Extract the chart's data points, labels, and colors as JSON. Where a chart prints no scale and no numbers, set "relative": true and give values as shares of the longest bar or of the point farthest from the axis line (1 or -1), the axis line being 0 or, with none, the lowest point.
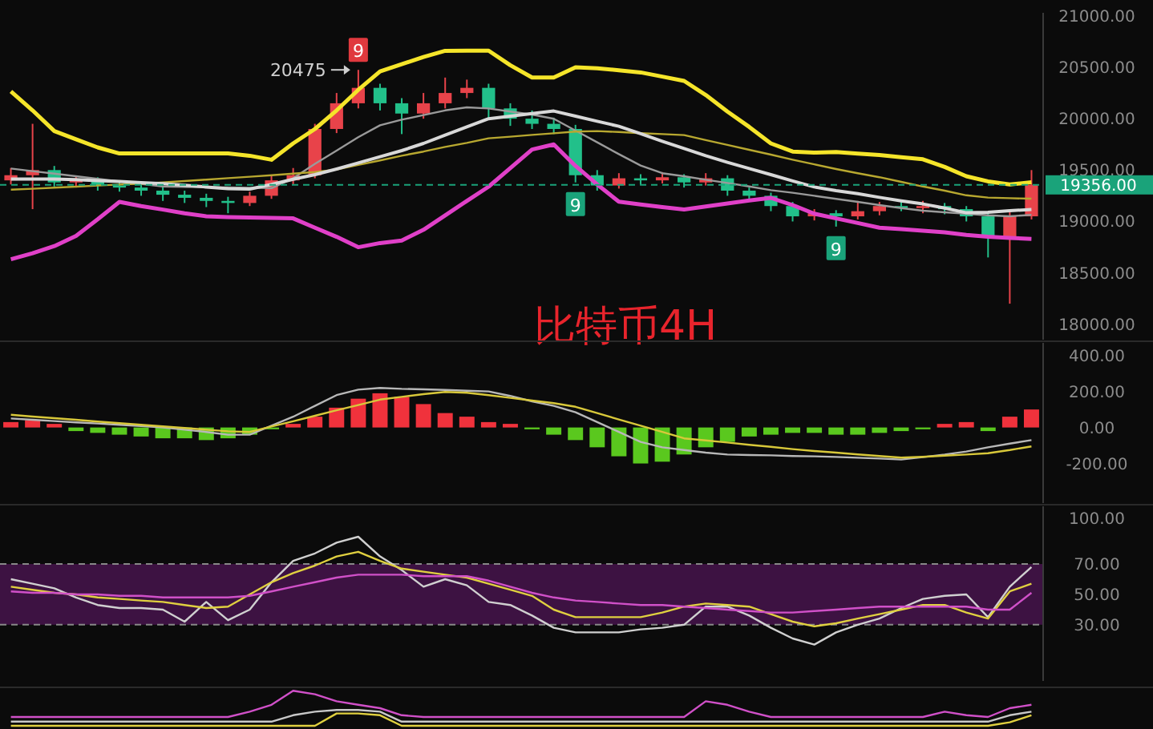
{
  "chart_data": [
    {
      "type": "candlestick",
      "title": "比特币4H",
      "tick_labels": "y",
      "ylim": [
        17850,
        21030
      ],
      "yticks": [
        {
          "value": 18000,
          "label": "18000.00"
        },
        {
          "value": 18500,
          "label": "18500.00"
        },
        {
          "value": 19000,
          "label": "19000.00"
        },
        {
          "value": 19500,
          "label": "19500.00"
        },
        {
          "value": 20000,
          "label": "20000.00"
        },
        {
          "value": 20500,
          "label": "20500.00"
        },
        {
          "value": 21000,
          "label": "21000.00"
        }
      ],
      "categories": [
        null,
        null,
        null,
        null,
        null,
        null,
        null,
        null,
        null,
        null,
        null,
        null,
        null,
        null,
        null,
        null,
        null,
        null,
        null,
        null,
        null,
        null,
        null,
        null,
        null,
        null,
        null,
        null,
        null,
        null,
        null,
        null,
        null,
        null,
        null,
        null,
        null,
        null,
        null,
        null,
        null,
        null,
        null,
        null,
        null,
        null,
        null,
        null
      ],
      "ohlc": [
        [
          19400,
          19520,
          19360,
          19450
        ],
        [
          19450,
          19950,
          19120,
          19500
        ],
        [
          19500,
          19540,
          19340,
          19380
        ],
        [
          19380,
          19440,
          19330,
          19400
        ],
        [
          19400,
          19430,
          19300,
          19350
        ],
        [
          19350,
          19390,
          19290,
          19330
        ],
        [
          19330,
          19360,
          19250,
          19300
        ],
        [
          19300,
          19340,
          19200,
          19260
        ],
        [
          19260,
          19300,
          19180,
          19230
        ],
        [
          19230,
          19270,
          19140,
          19200
        ],
        [
          19200,
          19240,
          19080,
          19180
        ],
        [
          19180,
          19290,
          19150,
          19250
        ],
        [
          19250,
          19450,
          19220,
          19400
        ],
        [
          19400,
          19520,
          19360,
          19450
        ],
        [
          19450,
          19950,
          19420,
          19900
        ],
        [
          19900,
          20250,
          19860,
          20150
        ],
        [
          20150,
          20475,
          20100,
          20300
        ],
        [
          20300,
          20340,
          20080,
          20150
        ],
        [
          20150,
          20200,
          19850,
          20050
        ],
        [
          20050,
          20250,
          20000,
          20150
        ],
        [
          20150,
          20400,
          20100,
          20250
        ],
        [
          20250,
          20380,
          20200,
          20300
        ],
        [
          20300,
          20340,
          20000,
          20100
        ],
        [
          20100,
          20150,
          19930,
          20000
        ],
        [
          20000,
          20080,
          19900,
          19950
        ],
        [
          19950,
          20010,
          19850,
          19900
        ],
        [
          19900,
          19940,
          19380,
          19450
        ],
        [
          19450,
          19500,
          19300,
          19350
        ],
        [
          19350,
          19470,
          19320,
          19420
        ],
        [
          19420,
          19460,
          19360,
          19400
        ],
        [
          19400,
          19480,
          19370,
          19430
        ],
        [
          19430,
          19460,
          19330,
          19380
        ],
        [
          19380,
          19470,
          19350,
          19420
        ],
        [
          19420,
          19450,
          19250,
          19300
        ],
        [
          19300,
          19330,
          19200,
          19250
        ],
        [
          19250,
          19280,
          19100,
          19150
        ],
        [
          19150,
          19190,
          19000,
          19050
        ],
        [
          19050,
          19120,
          19010,
          19080
        ],
        [
          19080,
          19110,
          18950,
          19050
        ],
        [
          19050,
          19200,
          19020,
          19100
        ],
        [
          19100,
          19190,
          19060,
          19150
        ],
        [
          19150,
          19200,
          19100,
          19130
        ],
        [
          19130,
          19200,
          19080,
          19150
        ],
        [
          19150,
          19180,
          19070,
          19120
        ],
        [
          19120,
          19150,
          19000,
          19050
        ],
        [
          19050,
          19080,
          18650,
          18850
        ],
        [
          18850,
          19100,
          18200,
          19050
        ],
        [
          19050,
          19500,
          19020,
          19356
        ]
      ],
      "series": [
        {
          "type": "line",
          "color": "#f5e52a",
          "values": [
            20265,
            20080,
            19880,
            19800,
            19720,
            19662,
            19662,
            19662,
            19662,
            19662,
            19662,
            19640,
            19600,
            19760,
            19900,
            20080,
            20280,
            20460,
            20530,
            20600,
            20660,
            20662,
            20662,
            20520,
            20400,
            20400,
            20500,
            20490,
            20470,
            20450,
            20410,
            20368,
            20230,
            20070,
            19920,
            19760,
            19680,
            19670,
            19675,
            19660,
            19645,
            19625,
            19605,
            19530,
            19440,
            19390,
            19360,
            19380
          ]
        },
        {
          "type": "line",
          "color": "#e040c8",
          "values": [
            18633,
            18690,
            18760,
            18860,
            19020,
            19190,
            19150,
            19115,
            19080,
            19050,
            19043,
            19040,
            19035,
            19030,
            18940,
            18850,
            18750,
            18790,
            18815,
            18920,
            19060,
            19200,
            19339,
            19520,
            19700,
            19750,
            19540,
            19360,
            19192,
            19165,
            19140,
            19118,
            19145,
            19175,
            19205,
            19230,
            19160,
            19075,
            19030,
            18985,
            18940,
            18925,
            18910,
            18895,
            18870,
            18850,
            18840,
            18830
          ]
        },
        {
          "type": "line",
          "color": "#9a9a9a",
          "values": [
            19515,
            19490,
            19465,
            19440,
            19415,
            19390,
            19365,
            19340,
            19337,
            19334,
            19331,
            19328,
            19325,
            19420,
            19560,
            19690,
            19820,
            19935,
            19990,
            20035,
            20080,
            20110,
            20100,
            20070,
            20040,
            20000,
            19885,
            19770,
            19655,
            19545,
            19470,
            19440,
            19405,
            19375,
            19340,
            19305,
            19280,
            19250,
            19220,
            19190,
            19160,
            19130,
            19105,
            19090,
            19075,
            19060,
            19050,
            19065
          ]
        },
        {
          "type": "line",
          "color": "#b8a830",
          "values": [
            19309,
            19319,
            19329,
            19339,
            19349,
            19359,
            19369,
            19380,
            19393,
            19408,
            19422,
            19436,
            19450,
            19465,
            19480,
            19505,
            19550,
            19595,
            19640,
            19680,
            19725,
            19765,
            19809,
            19825,
            19842,
            19858,
            19875,
            19880,
            19870,
            19860,
            19850,
            19840,
            19792,
            19745,
            19697,
            19650,
            19600,
            19555,
            19510,
            19470,
            19430,
            19385,
            19340,
            19300,
            19255,
            19232,
            19227,
            19222
          ]
        },
        {
          "type": "line",
          "color": "#d8d8d8",
          "values": [
            19412,
            19412,
            19412,
            19408,
            19398,
            19388,
            19378,
            19368,
            19352,
            19336,
            19320,
            19315,
            19360,
            19410,
            19455,
            19510,
            19570,
            19630,
            19690,
            19760,
            19840,
            19920,
            20000,
            20025,
            20050,
            20074,
            20025,
            19975,
            19927,
            19855,
            19780,
            19710,
            19640,
            19575,
            19515,
            19455,
            19395,
            19335,
            19300,
            19270,
            19235,
            19200,
            19170,
            19130,
            19085,
            19090,
            19105,
            19115
          ]
        }
      ],
      "ref_lines": [
        {
          "axis": "y",
          "value": 19356,
          "label": "19356.00",
          "color": "#1aa37a",
          "line_style": "dashed"
        }
      ],
      "annotations": [
        "20475",
        {
          "text": "9",
          "y": 20475
        },
        {
          "text": "9",
          "y": 19380
        },
        {
          "text": "9",
          "y": 18950
        }
      ]
    },
    {
      "type": "bar",
      "tick_labels": "y",
      "ylim": [
        -420,
        470
      ],
      "yticks": [
        {
          "value": -200,
          "label": "-200.00"
        },
        {
          "value": 0,
          "label": "0.00"
        },
        {
          "value": 200,
          "label": "200.00"
        },
        {
          "value": 400,
          "label": "400.00"
        }
      ],
      "categories": [
        null,
        null,
        null,
        null,
        null,
        null,
        null,
        null,
        null,
        null,
        null,
        null,
        null,
        null,
        null,
        null,
        null,
        null,
        null,
        null,
        null,
        null,
        null,
        null,
        null,
        null,
        null,
        null,
        null,
        null,
        null,
        null,
        null,
        null,
        null,
        null,
        null,
        null,
        null,
        null,
        null,
        null,
        null,
        null,
        null,
        null,
        null,
        null
      ],
      "values": [
        30,
        40,
        20,
        -20,
        -30,
        -40,
        -50,
        -60,
        -60,
        -70,
        -60,
        -40,
        -10,
        20,
        60,
        110,
        160,
        190,
        170,
        130,
        80,
        60,
        30,
        20,
        -10,
        -40,
        -70,
        -110,
        -160,
        -200,
        -190,
        -150,
        -110,
        -80,
        -50,
        -40,
        -30,
        -30,
        -40,
        -40,
        -30,
        -20,
        -10,
        20,
        30,
        -20,
        60,
        100
      ],
      "colors": [
        "#f0323c",
        "#f0323c",
        "#f0323c",
        "#5ac81e",
        "#5ac81e",
        "#5ac81e",
        "#5ac81e",
        "#5ac81e",
        "#5ac81e",
        "#5ac81e",
        "#5ac81e",
        "#5ac81e",
        "#5ac81e",
        "#f0323c",
        "#f0323c",
        "#f0323c",
        "#f0323c",
        "#f0323c",
        "#f0323c",
        "#f0323c",
        "#f0323c",
        "#f0323c",
        "#f0323c",
        "#f0323c",
        "#5ac81e",
        "#5ac81e",
        "#5ac81e",
        "#5ac81e",
        "#5ac81e",
        "#5ac81e",
        "#5ac81e",
        "#5ac81e",
        "#5ac81e",
        "#5ac81e",
        "#5ac81e",
        "#5ac81e",
        "#5ac81e",
        "#5ac81e",
        "#5ac81e",
        "#5ac81e",
        "#5ac81e",
        "#5ac81e",
        "#5ac81e",
        "#f0323c",
        "#f0323c",
        "#5ac81e",
        "#f0323c",
        "#f0323c"
      ],
      "series": [
        {
          "type": "line",
          "color": "#b8b8b8",
          "values": [
            50,
            43,
            36,
            29,
            22,
            15,
            8,
            0,
            -12,
            -25,
            -40,
            -40,
            10,
            60,
            120,
            180,
            210,
            220,
            215,
            212,
            208,
            204,
            200,
            175,
            145,
            120,
            85,
            30,
            -25,
            -80,
            -110,
            -125,
            -140,
            -150,
            -153,
            -155,
            -158,
            -160,
            -164,
            -168,
            -173,
            -178,
            -165,
            -150,
            -133,
            -110,
            -90,
            -70
          ]
        },
        {
          "type": "line",
          "color": "#d8c83a",
          "values": [
            70,
            61,
            52,
            43,
            33,
            24,
            15,
            6,
            -3,
            -12,
            -21,
            -25,
            5,
            35,
            65,
            95,
            125,
            155,
            170,
            185,
            198,
            193,
            180,
            165,
            150,
            135,
            115,
            80,
            45,
            10,
            -25,
            -60,
            -72,
            -84,
            -96,
            -108,
            -120,
            -131,
            -140,
            -149,
            -158,
            -167,
            -163,
            -157,
            -150,
            -143,
            -125,
            -105
          ]
        }
      ]
    },
    {
      "type": "line",
      "tick_labels": "y",
      "ylim": [
        -7,
        108
      ],
      "yticks": [
        {
          "value": 30,
          "label": "30.00"
        },
        {
          "value": 50,
          "label": "50.00"
        },
        {
          "value": 70,
          "label": "70.00"
        },
        {
          "value": 100,
          "label": "100.00"
        }
      ],
      "categories": [
        null,
        null,
        null,
        null,
        null,
        null,
        null,
        null,
        null,
        null,
        null,
        null,
        null,
        null,
        null,
        null,
        null,
        null,
        null,
        null,
        null,
        null,
        null,
        null,
        null,
        null,
        null,
        null,
        null,
        null,
        null,
        null,
        null,
        null,
        null,
        null,
        null,
        null,
        null,
        null,
        null,
        null,
        null,
        null,
        null,
        null,
        null,
        null
      ],
      "bands": [
        {
          "axis": "y",
          "from": 30,
          "to": 70,
          "color": "#3d1242"
        }
      ],
      "series": [
        {
          "color": "#d0d0d0",
          "values": [
            60,
            57,
            54,
            48,
            43,
            41,
            41,
            40,
            32,
            45,
            33,
            40,
            58,
            72,
            77,
            84,
            88,
            75,
            66,
            55,
            60,
            56,
            45,
            43,
            36,
            28,
            25,
            25,
            25,
            27,
            28,
            30,
            42,
            42,
            36,
            28,
            21,
            17,
            25,
            30,
            34,
            41,
            47,
            49,
            50,
            35,
            55,
            68
          ]
        },
        {
          "color": "#e0d040",
          "values": [
            55,
            53,
            51,
            50,
            48,
            47,
            46,
            45,
            43,
            41,
            42,
            50,
            58,
            64,
            69,
            75,
            78,
            72,
            67,
            65,
            63,
            61,
            57,
            53,
            49,
            40,
            35,
            35,
            35,
            35,
            38,
            42,
            44,
            43,
            42,
            37,
            32,
            29,
            31,
            34,
            37,
            40,
            43,
            43,
            38,
            34,
            52,
            57
          ]
        },
        {
          "color": "#d050c8",
          "values": [
            52,
            51,
            51,
            50,
            50,
            49,
            49,
            48,
            48,
            48,
            48,
            49,
            52,
            55,
            58,
            61,
            63,
            63,
            63,
            62,
            62,
            62,
            59,
            55,
            51,
            48,
            46,
            45,
            44,
            43,
            43,
            42,
            41,
            40,
            39,
            38,
            38,
            39,
            40,
            41,
            42,
            42,
            42,
            42,
            42,
            40,
            40,
            51
          ]
        }
      ]
    },
    {
      "type": "line",
      "relative": true,
      "tick_labels": false,
      "categories": [
        null,
        null,
        null,
        null,
        null,
        null,
        null,
        null,
        null,
        null,
        null,
        null,
        null,
        null,
        null,
        null,
        null,
        null,
        null,
        null,
        null,
        null,
        null,
        null,
        null,
        null,
        null,
        null,
        null,
        null,
        null,
        null,
        null,
        null,
        null,
        null,
        null,
        null,
        null,
        null,
        null,
        null,
        null,
        null,
        null,
        null,
        null,
        null
      ],
      "series": [
        {
          "color": "#d050c8",
          "values": [
            0.25,
            0.25,
            0.25,
            0.25,
            0.25,
            0.25,
            0.25,
            0.25,
            0.25,
            0.25,
            0.25,
            0.4,
            0.6,
            1,
            0.9,
            0.7,
            0.6,
            0.5,
            0.3,
            0.25,
            0.25,
            0.25,
            0.25,
            0.25,
            0.25,
            0.25,
            0.25,
            0.25,
            0.25,
            0.25,
            0.25,
            0.25,
            0.7,
            0.6,
            0.4,
            0.25,
            0.25,
            0.25,
            0.25,
            0.25,
            0.25,
            0.25,
            0.25,
            0.4,
            0.3,
            0.25,
            0.5,
            0.6
          ]
        },
        {
          "color": "#c8c8c8",
          "values": [
            0.12,
            0.12,
            0.12,
            0.12,
            0.12,
            0.12,
            0.12,
            0.12,
            0.12,
            0.12,
            0.12,
            0.12,
            0.12,
            0.3,
            0.4,
            0.45,
            0.45,
            0.4,
            0.12,
            0.12,
            0.12,
            0.12,
            0.12,
            0.12,
            0.12,
            0.12,
            0.12,
            0.12,
            0.12,
            0.12,
            0.12,
            0.12,
            0.12,
            0.12,
            0.12,
            0.12,
            0.12,
            0.12,
            0.12,
            0.12,
            0.12,
            0.12,
            0.12,
            0.12,
            0.12,
            0.12,
            0.3,
            0.4
          ]
        },
        {
          "color": "#e0d040",
          "values": [
            0,
            0,
            0,
            0,
            0,
            0,
            0,
            0,
            0,
            0,
            0,
            0,
            0,
            0,
            0,
            0.35,
            0.35,
            0.3,
            0,
            0,
            0,
            0,
            0,
            0,
            0,
            0,
            0,
            0,
            0,
            0,
            0,
            0,
            0,
            0,
            0,
            0,
            0,
            0,
            0,
            0,
            0,
            0,
            0,
            0,
            0,
            0,
            0.1,
            0.3
          ]
        }
      ]
    }
  ]
}
